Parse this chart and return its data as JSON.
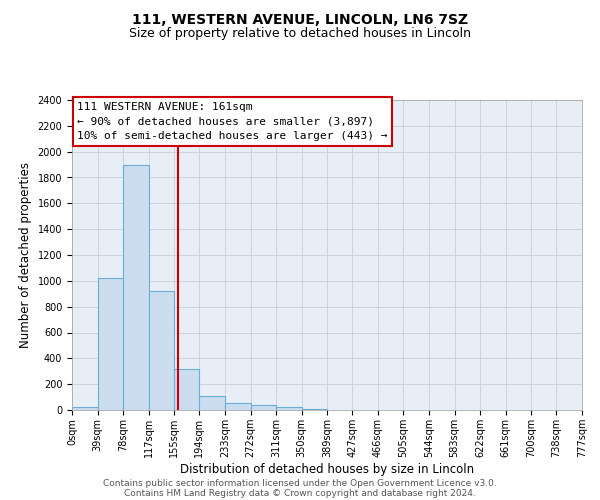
{
  "title": "111, WESTERN AVENUE, LINCOLN, LN6 7SZ",
  "subtitle": "Size of property relative to detached houses in Lincoln",
  "xlabel": "Distribution of detached houses by size in Lincoln",
  "ylabel": "Number of detached properties",
  "bin_edges": [
    0,
    39,
    78,
    117,
    155,
    194,
    233,
    272,
    311,
    350,
    389,
    427,
    466,
    505,
    544,
    583,
    622,
    661,
    700,
    738,
    777
  ],
  "bin_labels": [
    "0sqm",
    "39sqm",
    "78sqm",
    "117sqm",
    "155sqm",
    "194sqm",
    "233sqm",
    "272sqm",
    "311sqm",
    "350sqm",
    "389sqm",
    "427sqm",
    "466sqm",
    "505sqm",
    "544sqm",
    "583sqm",
    "622sqm",
    "661sqm",
    "700sqm",
    "738sqm",
    "777sqm"
  ],
  "bar_heights": [
    20,
    1020,
    1900,
    920,
    320,
    105,
    55,
    35,
    20,
    10,
    0,
    0,
    0,
    0,
    0,
    0,
    0,
    0,
    0,
    0
  ],
  "bar_color": "#ccddf0",
  "bar_edge_color": "#6baed6",
  "property_line_x": 161,
  "property_line_color": "#cc0000",
  "annotation_line1": "111 WESTERN AVENUE: 161sqm",
  "annotation_line2": "← 90% of detached houses are smaller (3,897)",
  "annotation_line3": "10% of semi-detached houses are larger (443) →",
  "annotation_box_color": "#ffffff",
  "annotation_box_edge_color": "#cc0000",
  "ylim": [
    0,
    2400
  ],
  "yticks": [
    0,
    200,
    400,
    600,
    800,
    1000,
    1200,
    1400,
    1600,
    1800,
    2000,
    2200,
    2400
  ],
  "grid_color": "#c8d0dc",
  "bg_color": "#e8eef5",
  "footer_line1": "Contains HM Land Registry data © Crown copyright and database right 2024.",
  "footer_line2": "Contains public sector information licensed under the Open Government Licence v3.0.",
  "title_fontsize": 10,
  "subtitle_fontsize": 9,
  "xlabel_fontsize": 8.5,
  "ylabel_fontsize": 8.5,
  "annotation_fontsize": 8,
  "footer_fontsize": 6.5,
  "tick_fontsize": 7
}
